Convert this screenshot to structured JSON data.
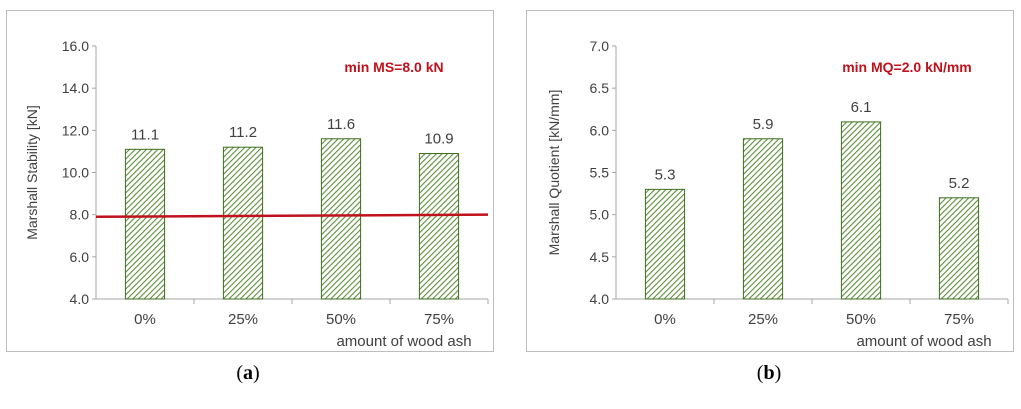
{
  "chart_data": [
    {
      "type": "bar",
      "categories": [
        "0%",
        "25%",
        "50%",
        "75%"
      ],
      "values": [
        11.1,
        11.2,
        11.6,
        10.9
      ],
      "data_labels": [
        "11.1",
        "11.2",
        "11.6",
        "10.9"
      ],
      "ylim": [
        4.0,
        16.0
      ],
      "yticks": [
        "4.0",
        "6.0",
        "8.0",
        "10.0",
        "12.0",
        "14.0",
        "16.0"
      ],
      "ylabel": "Marshall Stability   [kN]",
      "xlabel": "amount of wood ash",
      "annotation": "min MS=8.0 kN",
      "reference_line": {
        "value_start": 7.9,
        "value_end": 8.0,
        "color": "#c0121c"
      },
      "bar_fill": "hatched green",
      "grid": false,
      "legend": "none"
    },
    {
      "type": "bar",
      "categories": [
        "0%",
        "25%",
        "50%",
        "75%"
      ],
      "values": [
        5.3,
        5.9,
        6.1,
        5.2
      ],
      "data_labels": [
        "5.3",
        "5.9",
        "6.1",
        "5.2"
      ],
      "ylim": [
        4.0,
        7.0
      ],
      "yticks": [
        "4.0",
        "4.5",
        "5.0",
        "5.5",
        "6.0",
        "6.5",
        "7.0"
      ],
      "ylabel": "Marshall Quotient   [kN/mm]",
      "xlabel": "amount of wood ash",
      "annotation": "min MQ=2.0 kN/mm",
      "bar_fill": "hatched green",
      "grid": false,
      "legend": "none"
    }
  ],
  "captions": {
    "a_open": "(",
    "a_letter": "a",
    "a_close": ")",
    "b_open": "(",
    "b_letter": "b",
    "b_close": ")"
  },
  "colors": {
    "axis": "#a6a6a6",
    "bar_border": "#3c6e1e",
    "hatch": "#5d8f3a",
    "annotation": "#c0121c",
    "text": "#404040"
  }
}
